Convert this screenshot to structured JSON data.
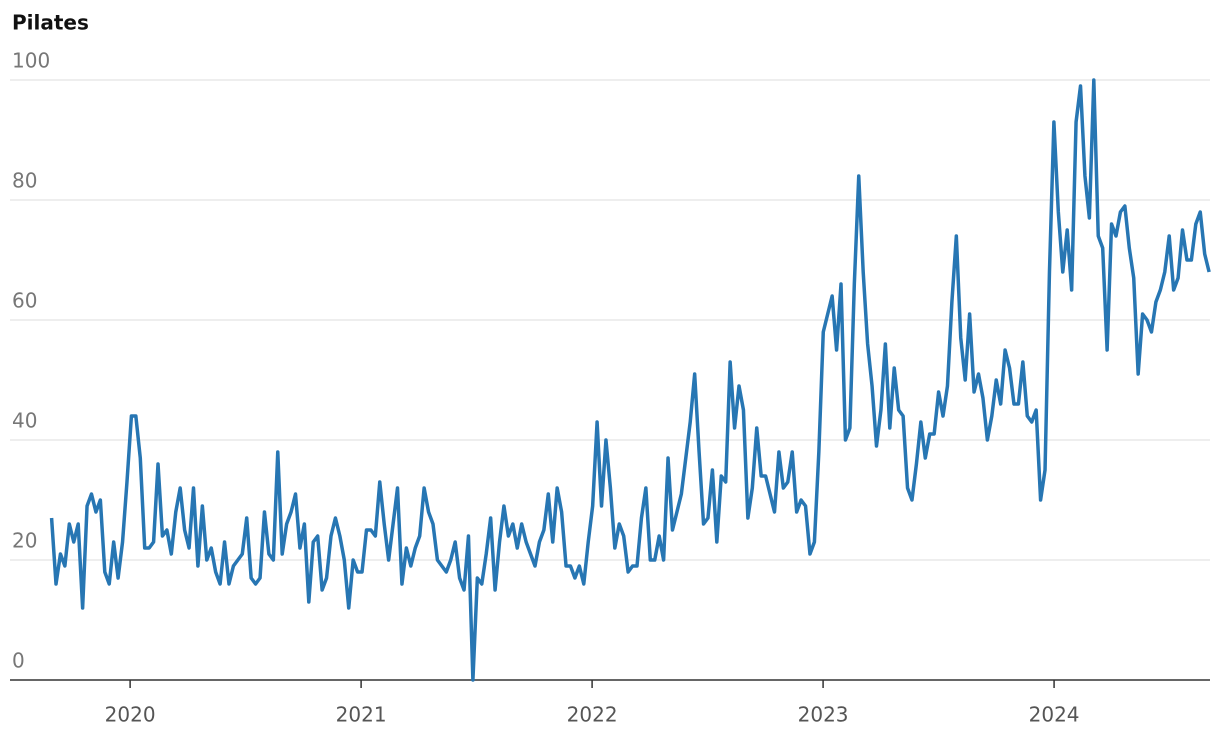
{
  "chart_data": {
    "type": "line",
    "title": "Pilates",
    "color": "#2776b3",
    "grid": true,
    "xlim": [
      2019.48,
      2024.675
    ],
    "xticks": [
      2020,
      2021,
      2022,
      2023,
      2024
    ],
    "ylim": [
      0,
      100
    ],
    "yticks": [
      0,
      20,
      40,
      60,
      80,
      100
    ],
    "x": [
      2019.66,
      2019.6792,
      2019.6984,
      2019.7176,
      2019.7368,
      2019.756,
      2019.7752,
      2019.7944,
      2019.8136,
      2019.8328,
      2019.852,
      2019.8712,
      2019.8904,
      2019.9096,
      2019.9288,
      2019.948,
      2019.9672,
      2019.9864,
      2020.0056,
      2020.0248,
      2020.044,
      2020.0632,
      2020.0824,
      2020.1016,
      2020.1208,
      2020.14,
      2020.1592,
      2020.1784,
      2020.1976,
      2020.2168,
      2020.236,
      2020.2552,
      2020.2744,
      2020.2936,
      2020.3128,
      2020.332,
      2020.3512,
      2020.3704,
      2020.3896,
      2020.4088,
      2020.428,
      2020.4472,
      2020.4664,
      2020.4856,
      2020.5048,
      2020.524,
      2020.5432,
      2020.5624,
      2020.5816,
      2020.6008,
      2020.62,
      2020.6392,
      2020.6584,
      2020.6776,
      2020.6968,
      2020.716,
      2020.7352,
      2020.7544,
      2020.7736,
      2020.7928,
      2020.812,
      2020.8312,
      2020.8504,
      2020.8696,
      2020.8888,
      2020.908,
      2020.9272,
      2020.9464,
      2020.9656,
      2020.9848,
      2021.004,
      2021.0232,
      2021.0424,
      2021.0616,
      2021.0808,
      2021.1,
      2021.1192,
      2021.1384,
      2021.1576,
      2021.1768,
      2021.196,
      2021.2152,
      2021.2344,
      2021.2536,
      2021.2728,
      2021.292,
      2021.3112,
      2021.3304,
      2021.3496,
      2021.3688,
      2021.388,
      2021.4072,
      2021.4264,
      2021.4456,
      2021.4648,
      2021.484,
      2021.5032,
      2021.5224,
      2021.5416,
      2021.5608,
      2021.58,
      2021.5992,
      2021.6184,
      2021.6376,
      2021.6568,
      2021.676,
      2021.6952,
      2021.7144,
      2021.7336,
      2021.7528,
      2021.772,
      2021.7912,
      2021.8104,
      2021.8296,
      2021.8488,
      2021.868,
      2021.8872,
      2021.9064,
      2021.9256,
      2021.9448,
      2021.964,
      2021.9832,
      2022.0024,
      2022.0216,
      2022.0408,
      2022.06,
      2022.0792,
      2022.0984,
      2022.1176,
      2022.1368,
      2022.156,
      2022.1752,
      2022.1944,
      2022.2136,
      2022.2328,
      2022.252,
      2022.2712,
      2022.2904,
      2022.3096,
      2022.3288,
      2022.348,
      2022.3672,
      2022.3864,
      2022.4056,
      2022.4248,
      2022.444,
      2022.4632,
      2022.4824,
      2022.5016,
      2022.5208,
      2022.54,
      2022.5592,
      2022.5784,
      2022.5976,
      2022.6168,
      2022.636,
      2022.6552,
      2022.6744,
      2022.6936,
      2022.7128,
      2022.732,
      2022.7512,
      2022.7704,
      2022.7896,
      2022.8088,
      2022.828,
      2022.8472,
      2022.8664,
      2022.8856,
      2022.9048,
      2022.924,
      2022.9432,
      2022.9624,
      2022.9816,
      2023.0008,
      2023.02,
      2023.0392,
      2023.0584,
      2023.0776,
      2023.0968,
      2023.116,
      2023.1352,
      2023.1544,
      2023.1736,
      2023.1928,
      2023.212,
      2023.2312,
      2023.2504,
      2023.2696,
      2023.2888,
      2023.308,
      2023.3272,
      2023.3464,
      2023.3656,
      2023.3848,
      2023.404,
      2023.4232,
      2023.4424,
      2023.4616,
      2023.4808,
      2023.5,
      2023.5192,
      2023.5384,
      2023.5576,
      2023.5768,
      2023.596,
      2023.6152,
      2023.6344,
      2023.6536,
      2023.6728,
      2023.692,
      2023.7112,
      2023.7304,
      2023.7496,
      2023.7688,
      2023.788,
      2023.8072,
      2023.8264,
      2023.8456,
      2023.8648,
      2023.884,
      2023.9032,
      2023.9224,
      2023.9416,
      2023.9608,
      2023.98,
      2023.9992,
      2024.0184,
      2024.0376,
      2024.0568,
      2024.076,
      2024.0952,
      2024.1144,
      2024.1336,
      2024.1528,
      2024.172,
      2024.1912,
      2024.2104,
      2024.2296,
      2024.2488,
      2024.268,
      2024.2872,
      2024.3064,
      2024.3256,
      2024.3448,
      2024.364,
      2024.3832,
      2024.4024,
      2024.4216,
      2024.4408,
      2024.46,
      2024.4792,
      2024.4984,
      2024.5176,
      2024.5368,
      2024.556,
      2024.5752,
      2024.5944,
      2024.6136,
      2024.6328,
      2024.652,
      2024.6712
    ],
    "values": [
      27,
      16,
      21,
      19,
      26,
      23,
      26,
      12,
      29,
      31,
      28,
      30,
      18,
      16,
      23,
      17,
      23,
      33,
      44,
      44,
      37,
      22,
      22,
      23,
      36,
      24,
      25,
      21,
      28,
      32,
      25,
      22,
      32,
      19,
      29,
      20,
      22,
      18,
      16,
      23,
      16,
      19,
      20,
      21,
      27,
      17,
      16,
      17,
      28,
      21,
      20,
      38,
      21,
      26,
      28,
      31,
      22,
      26,
      13,
      23,
      24,
      15,
      17,
      24,
      27,
      24,
      20,
      12,
      20,
      18,
      18,
      25,
      25,
      24,
      33,
      26,
      20,
      26,
      32,
      16,
      22,
      19,
      22,
      24,
      32,
      28,
      26,
      20,
      19,
      18,
      20,
      23,
      17,
      15,
      24,
      0,
      17,
      16,
      21,
      27,
      15,
      23,
      29,
      24,
      26,
      22,
      26,
      23,
      21,
      19,
      23,
      25,
      31,
      23,
      32,
      28,
      19,
      19,
      17,
      19,
      16,
      23,
      29,
      43,
      29,
      40,
      32,
      22,
      26,
      24,
      18,
      19,
      19,
      27,
      32,
      20,
      20,
      24,
      20,
      37,
      25,
      28,
      31,
      37,
      43,
      51,
      38,
      26,
      27,
      35,
      23,
      34,
      33,
      53,
      42,
      49,
      45,
      27,
      32,
      42,
      34,
      34,
      31,
      28,
      38,
      32,
      33,
      38,
      28,
      30,
      29,
      21,
      23,
      38,
      58,
      61,
      64,
      55,
      66,
      40,
      42,
      66,
      84,
      68,
      56,
      49,
      39,
      45,
      56,
      42,
      52,
      45,
      44,
      32,
      30,
      36,
      43,
      37,
      41,
      41,
      48,
      44,
      49,
      63,
      74,
      57,
      50,
      61,
      48,
      51,
      47,
      40,
      44,
      50,
      46,
      55,
      52,
      46,
      46,
      53,
      44,
      43,
      45,
      30,
      35,
      68,
      93,
      78,
      68,
      75,
      65,
      93,
      99,
      84,
      77,
      100,
      74,
      72,
      55,
      76,
      74,
      78,
      79,
      72,
      67,
      51,
      61,
      60,
      58,
      63,
      65,
      68,
      74,
      65,
      67,
      75,
      70,
      70,
      76,
      78,
      71,
      68
    ]
  }
}
